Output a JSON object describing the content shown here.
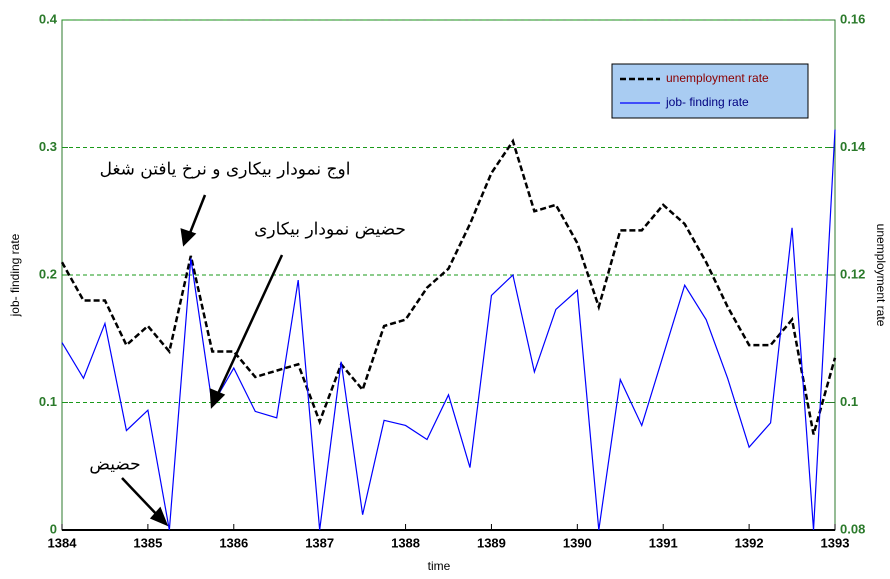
{
  "chart_data": {
    "type": "line",
    "x_label": "time",
    "y_label": "job- finding rate",
    "y2_label": "unemployment rate",
    "x": [
      1384,
      1384.25,
      1384.5,
      1384.75,
      1385,
      1385.25,
      1385.5,
      1385.75,
      1386,
      1386.25,
      1386.5,
      1386.75,
      1387,
      1387.25,
      1387.5,
      1387.75,
      1388,
      1388.25,
      1388.5,
      1388.75,
      1389,
      1389.25,
      1389.5,
      1389.75,
      1390,
      1390.25,
      1390.5,
      1390.75,
      1391,
      1391.25,
      1391.5,
      1391.75,
      1392,
      1392.25,
      1392.5,
      1392.75,
      1393
    ],
    "series": [
      {
        "name": "unemployment rate",
        "color": "#000000",
        "dash": true,
        "axis": "y2",
        "values": [
          0.122,
          0.116,
          0.116,
          0.109,
          0.112,
          0.108,
          0.123,
          0.108,
          0.108,
          0.104,
          0.105,
          0.106,
          0.097,
          0.106,
          0.102,
          0.112,
          0.113,
          0.118,
          0.121,
          0.128,
          0.136,
          0.141,
          0.13,
          0.131,
          0.125,
          0.115,
          0.127,
          0.127,
          0.131,
          0.128,
          0.122,
          0.115,
          0.109,
          0.109,
          0.113,
          0.095,
          0.107
        ]
      },
      {
        "name": "job- finding rate",
        "color": "#0000ff",
        "dash": false,
        "values": [
          0.147,
          0.119,
          0.162,
          0.078,
          0.094,
          0,
          0.213,
          0.098,
          0.127,
          0.093,
          0.088,
          0.196,
          0,
          0.132,
          0.012,
          0.086,
          0.082,
          0.071,
          0.106,
          0.049,
          0.184,
          0.2,
          0.124,
          0.173,
          0.188,
          0,
          0.118,
          0.082,
          0.137,
          0.192,
          0.165,
          0.119,
          0.065,
          0.084,
          0.237,
          0,
          0.314
        ]
      }
    ],
    "xlim": [
      1384,
      1393
    ],
    "xticks": [
      1384,
      1385,
      1386,
      1387,
      1388,
      1389,
      1390,
      1391,
      1392,
      1393
    ],
    "ylim": [
      0,
      0.4
    ],
    "yticks": [
      0,
      0.1,
      0.2,
      0.3,
      0.4
    ],
    "y2lim": [
      0.08,
      0.16
    ],
    "y2ticks": [
      0.08,
      0.1,
      0.12,
      0.14,
      0.16
    ],
    "grid": true,
    "legend": "upper right",
    "annotations": [
      "اوج نمودار بیکاری و نرخ یافتن شغل",
      "حضیض نمودار بیکاری",
      "حضیض"
    ]
  }
}
